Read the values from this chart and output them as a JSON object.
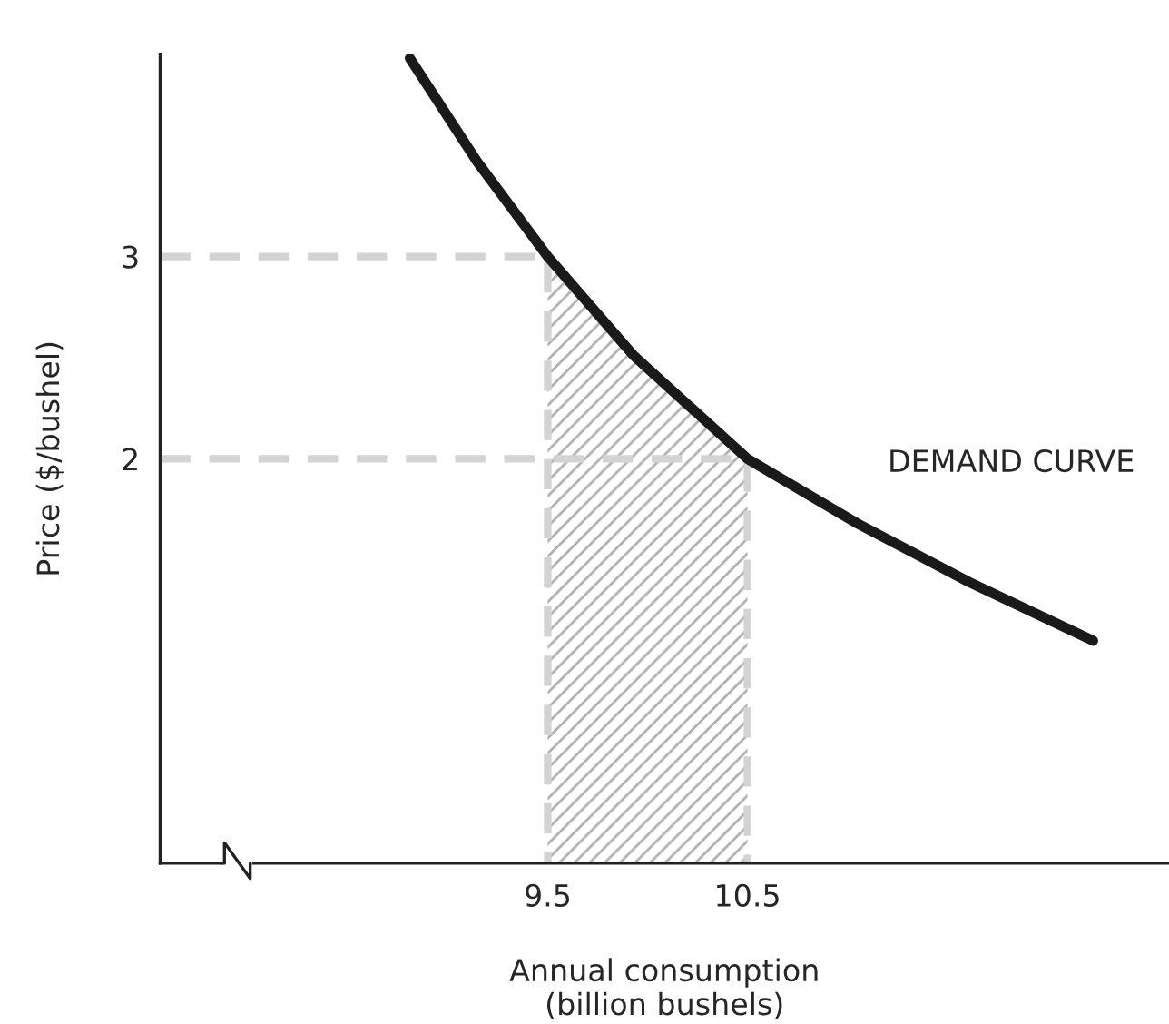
{
  "chart_data": {
    "type": "line",
    "xlabel": "Annual consumption\n(billion bushels)",
    "ylabel": "Price ($/bushel)",
    "xlim": [
      7.56,
      12.61
    ],
    "ylim": [
      0,
      4.0
    ],
    "xticks": [
      9.5,
      10.5
    ],
    "yticks": [
      2,
      3
    ],
    "grid": false,
    "marker": "none",
    "series": [
      {
        "type": "area",
        "color": "#b0b0b0",
        "x": [
          9.5,
          9.93,
          10.5
        ],
        "values": [
          3.0,
          2.51,
          2.0
        ]
      },
      {
        "type": "line",
        "color": "#d3d3d3",
        "line_style": "dashed",
        "x": [
          7.56,
          9.5,
          9.5
        ],
        "values": [
          3.0,
          3.0,
          0
        ]
      },
      {
        "type": "line",
        "color": "#d3d3d3",
        "line_style": "dashed",
        "x": [
          7.56,
          10.5,
          10.5
        ],
        "values": [
          2.0,
          2.0,
          0
        ]
      },
      {
        "color": "#1a1a1a",
        "line_style": "solid",
        "x": [
          8.81,
          9.146,
          9.5,
          9.93,
          10.5,
          11.05,
          11.61,
          12.23
        ],
        "values": [
          3.98,
          3.47,
          3.0,
          2.51,
          2.0,
          1.68,
          1.39,
          1.1
        ]
      }
    ],
    "annotations": [
      {
        "text": "DEMAND CURVE",
        "x": 11.05,
        "y": 1.68
      }
    ]
  }
}
